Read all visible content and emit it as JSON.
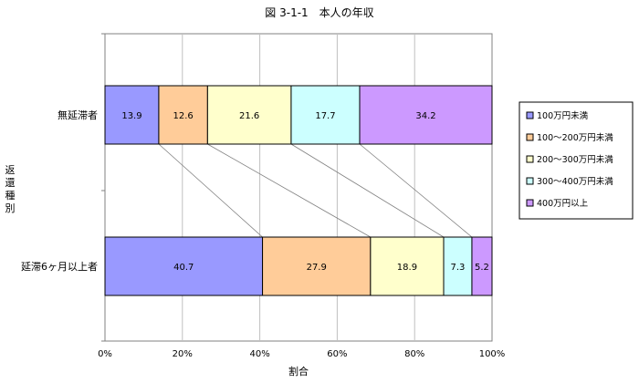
{
  "chart_data": {
    "type": "bar",
    "orientation": "horizontal",
    "stacked": "percent",
    "title": "図 3-1-1　本人の年収",
    "xlabel": "割合",
    "ylabel": "返還種別",
    "xlim": [
      0,
      100
    ],
    "xticks": [
      "0%",
      "20%",
      "40%",
      "60%",
      "80%",
      "100%"
    ],
    "grid": true,
    "legend_position": "right",
    "categories": [
      "無延滞者",
      "延滞6ヶ月以上者"
    ],
    "series": [
      {
        "name": "100万円未満",
        "color": "#9999ff",
        "values": [
          13.9,
          40.7
        ],
        "labels": [
          "13.9",
          "40.7"
        ]
      },
      {
        "name": "100～200万円未満",
        "color": "#ffcc99",
        "values": [
          12.6,
          27.9
        ],
        "labels": [
          "12.6",
          "27.9"
        ]
      },
      {
        "name": "200～300万円未満",
        "color": "#ffffcc",
        "values": [
          21.6,
          18.9
        ],
        "labels": [
          "21.6",
          "18.9"
        ]
      },
      {
        "name": "300～400万円未満",
        "color": "#ccffff",
        "values": [
          17.7,
          7.3
        ],
        "labels": [
          "17.7",
          "7.3"
        ]
      },
      {
        "name": "400万円以上",
        "color": "#cc99ff",
        "values": [
          34.2,
          5.2
        ],
        "labels": [
          "34.2",
          "5.2"
        ]
      }
    ],
    "series_lines": true
  }
}
